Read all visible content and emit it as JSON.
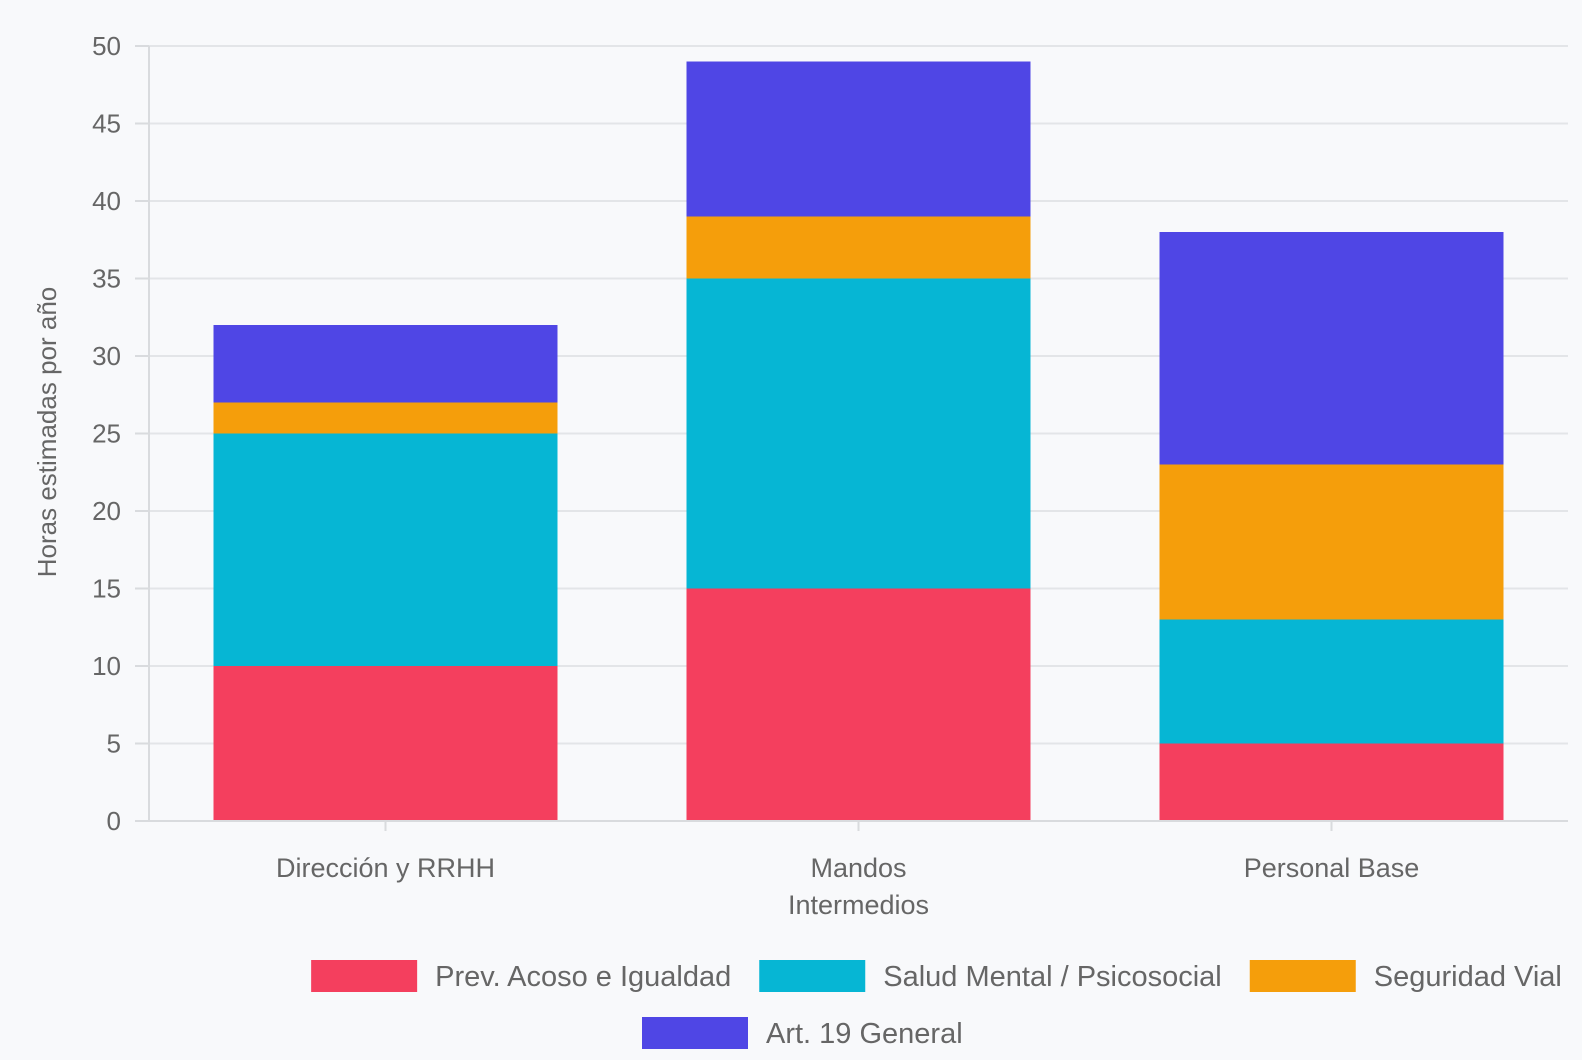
{
  "chart_data": {
    "type": "bar",
    "stacked": true,
    "categories": [
      [
        "Dirección y RRHH"
      ],
      [
        "Mandos",
        "Intermedios"
      ],
      [
        "Personal Base"
      ]
    ],
    "series": [
      {
        "name": "Prev. Acoso e Igualdad",
        "color": "#f43f5e",
        "values": [
          10,
          15,
          5
        ]
      },
      {
        "name": "Salud Mental / Psicosocial",
        "color": "#06b6d4",
        "values": [
          15,
          20,
          8
        ]
      },
      {
        "name": "Seguridad Vial",
        "color": "#f59e0b",
        "values": [
          2,
          4,
          10
        ]
      },
      {
        "name": "Art. 19 General",
        "color": "#4f46e5",
        "values": [
          5,
          10,
          15
        ]
      }
    ],
    "title": "",
    "xlabel": "",
    "ylabel": "Horas estimadas por año",
    "ylim": [
      0,
      50
    ],
    "yticks": [
      0,
      5,
      10,
      15,
      20,
      25,
      30,
      35,
      40,
      45,
      50
    ],
    "grid": true,
    "legend_position": "bottom"
  }
}
